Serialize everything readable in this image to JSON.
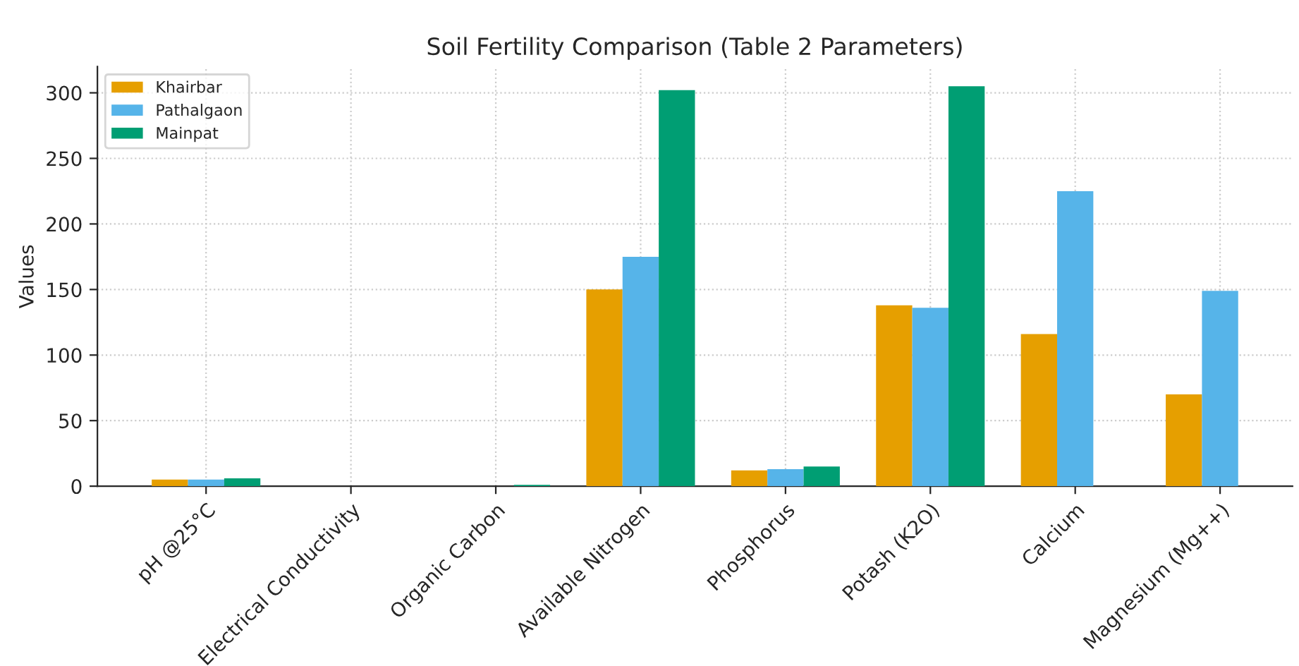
{
  "chart_data": {
    "type": "bar",
    "title": "Soil Fertility Comparison (Table 2 Parameters)",
    "ylabel": "Values",
    "categories": [
      "pH @25°C",
      "Electrical Conductivity",
      "Organic Carbon",
      "Available Nitrogen",
      "Phosphorus",
      "Potash (K2O)",
      "Calcium",
      "Magnesium (Mg++)"
    ],
    "series": [
      {
        "name": "Khairbar",
        "color": "#e69f00",
        "values": [
          5,
          null,
          null,
          150,
          12,
          138,
          116,
          70
        ]
      },
      {
        "name": "Pathalgaon",
        "color": "#56b4e9",
        "values": [
          5,
          null,
          null,
          175,
          13,
          136,
          225,
          149
        ]
      },
      {
        "name": "Mainpat",
        "color": "#009e73",
        "values": [
          6,
          null,
          1,
          302,
          15,
          305,
          null,
          null
        ]
      }
    ],
    "ylim": [
      0,
      320
    ],
    "yticks": [
      0,
      50,
      100,
      150,
      200,
      250,
      300
    ],
    "grid": true,
    "legend": "top left"
  }
}
